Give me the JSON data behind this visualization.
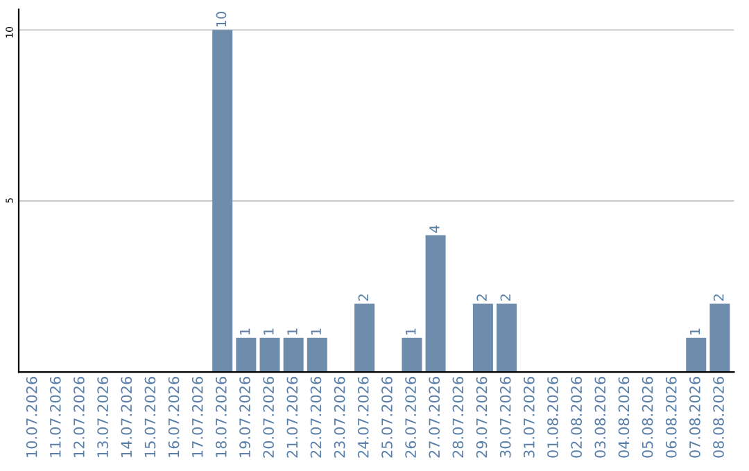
{
  "chart_data": {
    "type": "bar",
    "categories": [
      "10.07.2026",
      "11.07.2026",
      "12.07.2026",
      "13.07.2026",
      "14.07.2026",
      "15.07.2026",
      "16.07.2026",
      "17.07.2026",
      "18.07.2026",
      "19.07.2026",
      "20.07.2026",
      "21.07.2026",
      "22.07.2026",
      "23.07.2026",
      "24.07.2026",
      "25.07.2026",
      "26.07.2026",
      "27.07.2026",
      "28.07.2026",
      "29.07.2026",
      "30.07.2026",
      "31.07.2026",
      "01.08.2026",
      "02.08.2026",
      "03.08.2026",
      "04.08.2026",
      "05.08.2026",
      "06.08.2026",
      "07.08.2026",
      "08.08.2026"
    ],
    "values": [
      0,
      0,
      0,
      0,
      0,
      0,
      0,
      0,
      10,
      1,
      1,
      1,
      1,
      0,
      2,
      0,
      1,
      4,
      0,
      2,
      2,
      0,
      0,
      0,
      0,
      0,
      0,
      0,
      1,
      2
    ],
    "value_labels": [
      null,
      null,
      null,
      null,
      null,
      null,
      null,
      null,
      "10",
      "1",
      "1",
      "1",
      "1",
      null,
      "2",
      null,
      "1",
      "4",
      null,
      "2",
      "2",
      null,
      null,
      null,
      null,
      null,
      null,
      null,
      "1",
      "2"
    ],
    "color": "#6e8cab",
    "ylim": [
      0,
      10.6
    ],
    "yticks": [
      5,
      10
    ],
    "grid": "y",
    "legend": false
  }
}
